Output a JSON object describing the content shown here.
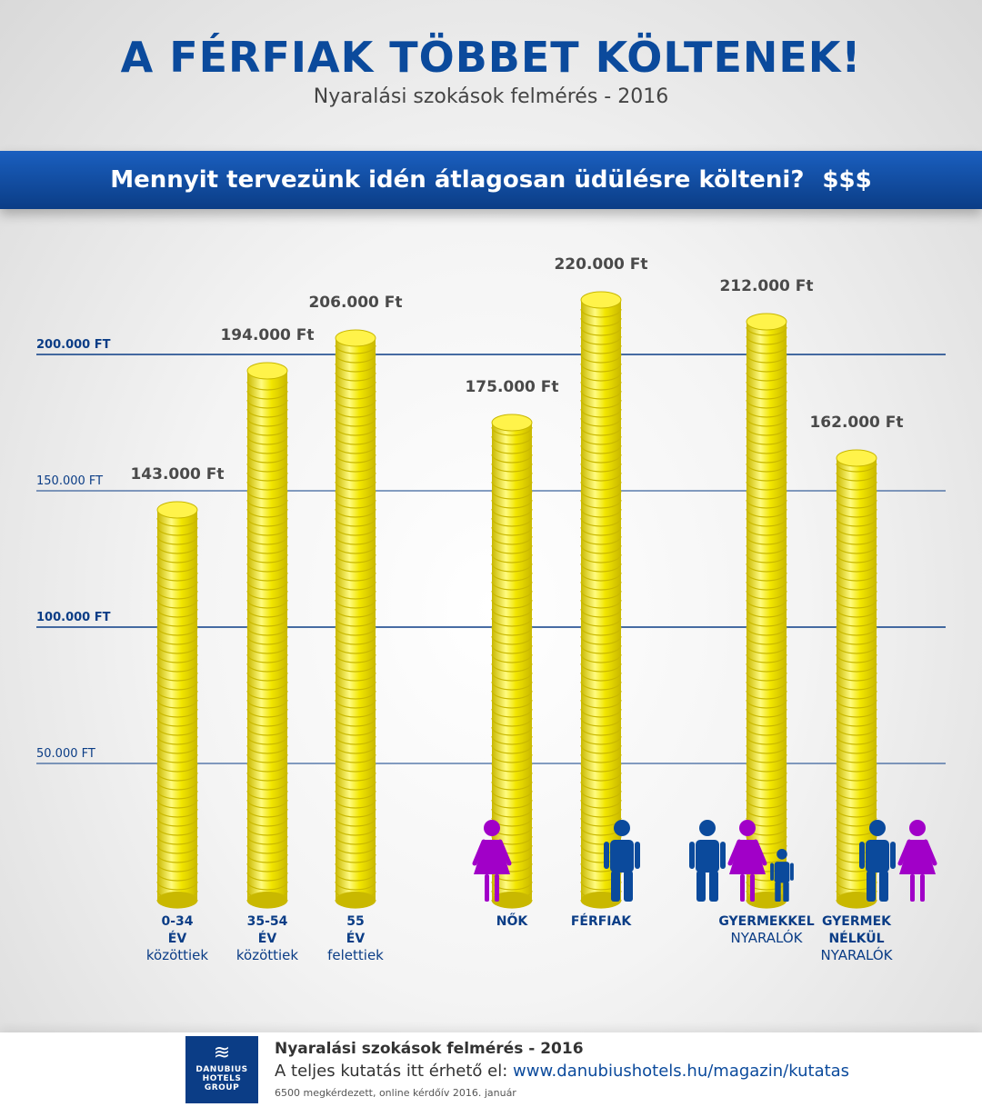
{
  "header": {
    "title": "A FÉRFIAK TÖBBET KÖLTENEK!",
    "subtitle": "Nyaralási szokások felmérés - 2016"
  },
  "banner": {
    "question": "Mennyit tervezünk idén átlagosan üdülésre költeni?",
    "symbol": "$$$"
  },
  "colors": {
    "accent": "#0b4a9c",
    "banner": "#0b3d86",
    "coin": "#f2e600",
    "coin_dark": "#c9b800",
    "male_icon": "#0b4a9c",
    "female_icon": "#a100c8"
  },
  "chart_data": {
    "type": "bar",
    "ylim": [
      0,
      240000
    ],
    "gridlines": [
      {
        "value": 200000,
        "label": "200.000 FT",
        "bold": true
      },
      {
        "value": 150000,
        "label": "150.000 FT",
        "bold": false
      },
      {
        "value": 100000,
        "label": "100.000 FT",
        "bold": true
      },
      {
        "value": 50000,
        "label": "50.000 FT",
        "bold": false
      }
    ],
    "bars": [
      {
        "value": 143000,
        "value_label": "143.000 Ft",
        "label_bold": "0-34 ÉV",
        "label_rest": [
          "közöttiek"
        ],
        "icons": []
      },
      {
        "value": 194000,
        "value_label": "194.000 Ft",
        "label_bold": "35-54 ÉV",
        "label_rest": [
          "közöttiek"
        ],
        "icons": []
      },
      {
        "value": 206000,
        "value_label": "206.000 Ft",
        "label_bold": "55 ÉV",
        "label_rest": [
          "felettiek"
        ],
        "icons": []
      },
      {
        "value": 175000,
        "value_label": "175.000 Ft",
        "label_bold": "NŐK",
        "label_rest": [],
        "icons": [
          "woman-icon"
        ]
      },
      {
        "value": 220000,
        "value_label": "220.000 Ft",
        "label_bold": "FÉRFIAK",
        "label_rest": [],
        "icons": [
          "man-icon"
        ]
      },
      {
        "value": 212000,
        "value_label": "212.000 Ft",
        "label_bold": "GYERMEKKEL",
        "label_rest": [
          "NYARALÓK"
        ],
        "icons": [
          "man-icon",
          "woman-icon",
          "child-icon"
        ]
      },
      {
        "value": 162000,
        "value_label": "162.000 Ft",
        "label_bold": "GYERMEK NÉLKÜL",
        "label_rest": [
          "NYARALÓK"
        ],
        "icons": [
          "man-icon",
          "woman-icon"
        ]
      }
    ]
  },
  "footer": {
    "logo_text": "DANUBIUS HOTELS GROUP",
    "title": "Nyaralási szokások felmérés - 2016",
    "line_prefix": "A teljes kutatás itt érhető el: ",
    "link": "www.danubiushotels.hu/magazin/kutatas",
    "note": "6500 megkérdezett, online kérdőív 2016. január"
  }
}
